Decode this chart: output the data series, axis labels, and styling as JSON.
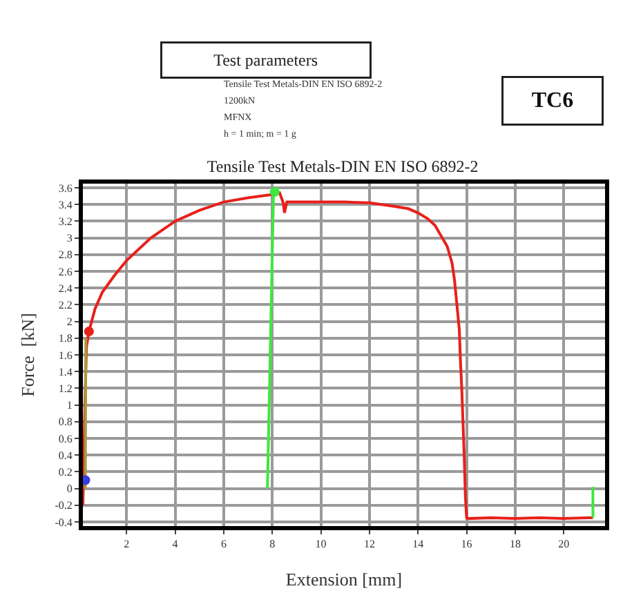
{
  "chart_data": {
    "type": "line",
    "title": "Tensile Test Metals-DIN EN ISO 6892-2",
    "xlabel": "Extension [mm]",
    "ylabel": "Force  [kN]",
    "annotations": [
      "Test parameters",
      "Tensile Test Metals-DIN EN ISO 6892-2",
      "1200kN",
      "MFNX",
      "h = 1 min; m = 1 g",
      "TC6"
    ],
    "series": [
      {
        "color": "#e8201a",
        "x": [
          0.2,
          0.25,
          0.3,
          0.35,
          0.45,
          0.7,
          1.0,
          1.5,
          2.0,
          3.0,
          4.0,
          5.0,
          6.0,
          7.0,
          8.0,
          8.3,
          8.45,
          8.5,
          8.6,
          9.0,
          10.0,
          11.0,
          12.0,
          13.0,
          13.6,
          14.0,
          14.4,
          14.7,
          15.0,
          15.2,
          15.4,
          15.5,
          15.6,
          15.7,
          15.75,
          15.8,
          15.85,
          15.9,
          15.95,
          16.0,
          16.05,
          17.0,
          18.0,
          19.0,
          20.0,
          21.0,
          21.2
        ],
        "values": [
          -0.2,
          0.5,
          1.2,
          1.7,
          1.88,
          2.15,
          2.35,
          2.55,
          2.73,
          3.0,
          3.2,
          3.33,
          3.43,
          3.48,
          3.52,
          3.54,
          3.42,
          3.3,
          3.43,
          3.43,
          3.43,
          3.43,
          3.42,
          3.38,
          3.35,
          3.3,
          3.23,
          3.15,
          3.0,
          2.9,
          2.7,
          2.5,
          2.2,
          1.9,
          1.5,
          1.2,
          0.8,
          0.4,
          -0.1,
          -0.35,
          -0.36,
          -0.35,
          -0.36,
          -0.35,
          -0.36,
          -0.35,
          -0.35
        ]
      },
      {
        "color": "#a89a3a",
        "x": [
          0.3,
          0.32
        ],
        "values": [
          0.0,
          1.8
        ]
      },
      {
        "color": "#3ee83e",
        "x": [
          7.8,
          8.05
        ],
        "values": [
          0.0,
          3.55
        ]
      },
      {
        "color": "#3ee83e",
        "x": [
          21.2,
          21.2
        ],
        "values": [
          -0.35,
          0.02
        ]
      },
      {
        "type": "scatter",
        "color": "#3ee83e",
        "x": [
          8.1
        ],
        "values": [
          3.55
        ]
      },
      {
        "type": "scatter",
        "color": "#e8201a",
        "x": [
          0.45
        ],
        "values": [
          1.88
        ]
      },
      {
        "type": "scatter",
        "color": "#3a3ae0",
        "x": [
          0.3
        ],
        "values": [
          0.1
        ]
      }
    ],
    "xlim": [
      0.2,
      21.7
    ],
    "xticks": [
      2,
      4,
      6,
      8,
      10,
      12,
      14,
      16,
      18,
      20
    ],
    "ylim": [
      -0.45,
      3.65
    ],
    "yticks": [
      -0.4,
      -0.2,
      0,
      0.2,
      0.4,
      0.6,
      0.8,
      1,
      1.2,
      1.4,
      1.6,
      1.8,
      2,
      2.2,
      2.4,
      2.6,
      2.8,
      3,
      3.2,
      3.4,
      3.6
    ],
    "grid": true
  }
}
